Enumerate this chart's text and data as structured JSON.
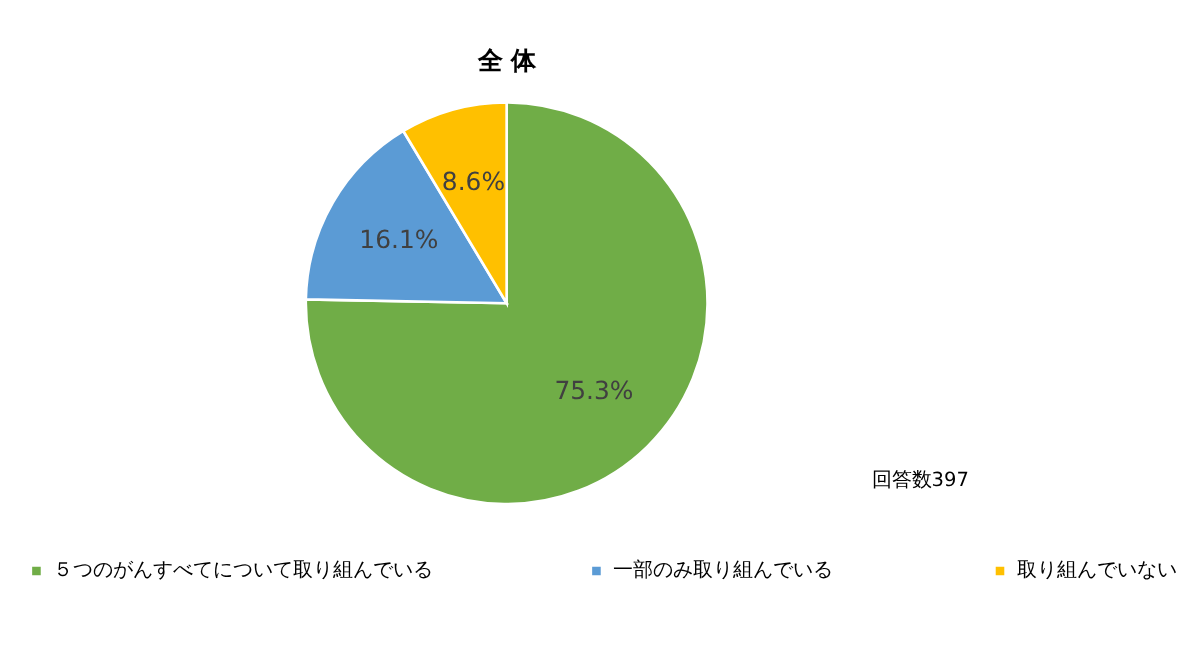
{
  "chart_data": {
    "type": "pie",
    "title": "全 体",
    "categories": [
      "５つのがんすべてについて取り組んでいる",
      "一部のみ取り組んでいる",
      "取り組んでいない"
    ],
    "values": [
      75.3,
      16.1,
      8.6
    ],
    "colors": [
      "#70ad47",
      "#5b9bd5",
      "#ffc000"
    ],
    "value_labels": [
      "75.3%",
      "16.1%",
      "8.6%"
    ],
    "annotations": [
      "回答数397"
    ],
    "legend": "bottom"
  }
}
